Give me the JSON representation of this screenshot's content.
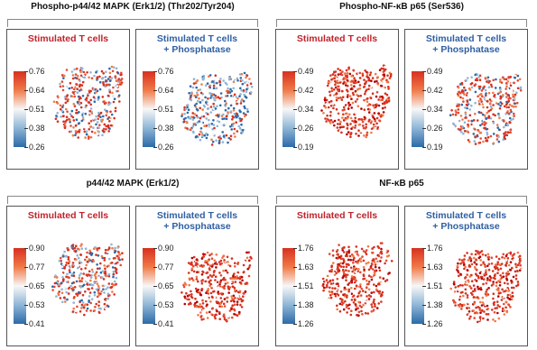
{
  "groups": [
    {
      "title": "Phospho-p44/42 MAPK (Erk1/2) (Thr202/Tyr204)",
      "panels": [
        {
          "title": "Stimulated T cells",
          "subtitle": "",
          "colorbar_ticks": [
            "0.76",
            "0.64",
            "0.51",
            "0.38",
            "0.26"
          ],
          "dominant": "mixed"
        },
        {
          "title": "Stimulated T cells",
          "subtitle": "+ Phosphatase",
          "colorbar_ticks": [
            "0.76",
            "0.64",
            "0.51",
            "0.38",
            "0.26"
          ],
          "dominant": "blue"
        }
      ]
    },
    {
      "title": "Phospho-NF-κB p65 (Ser536)",
      "panels": [
        {
          "title": "Stimulated T cells",
          "subtitle": "",
          "colorbar_ticks": [
            "0.49",
            "0.42",
            "0.34",
            "0.26",
            "0.19"
          ],
          "dominant": "red"
        },
        {
          "title": "Stimulated T cells",
          "subtitle": "+ Phosphatase",
          "colorbar_ticks": [
            "0.49",
            "0.42",
            "0.34",
            "0.26",
            "0.19"
          ],
          "dominant": "mixed"
        }
      ]
    },
    {
      "title": "p44/42 MAPK (Erk1/2)",
      "panels": [
        {
          "title": "Stimulated T cells",
          "subtitle": "",
          "colorbar_ticks": [
            "0.90",
            "0.77",
            "0.65",
            "0.53",
            "0.41"
          ],
          "dominant": "mixed"
        },
        {
          "title": "Stimulated T cells",
          "subtitle": "+ Phosphatase",
          "colorbar_ticks": [
            "0.90",
            "0.77",
            "0.65",
            "0.53",
            "0.41"
          ],
          "dominant": "red"
        }
      ]
    },
    {
      "title": "NF-κB p65",
      "panels": [
        {
          "title": "Stimulated T cells",
          "subtitle": "",
          "colorbar_ticks": [
            "1.76",
            "1.63",
            "1.51",
            "1.38",
            "1.26"
          ],
          "dominant": "red"
        },
        {
          "title": "Stimulated T cells",
          "subtitle": "+ Phosphatase",
          "colorbar_ticks": [
            "1.76",
            "1.63",
            "1.51",
            "1.38",
            "1.26"
          ],
          "dominant": "red"
        }
      ]
    }
  ],
  "colors": {
    "high": "#d7301f",
    "mid": "#f7f7f7",
    "low": "#2c6aa8",
    "title_red": "#c0232c",
    "title_blue": "#2f5fa3"
  }
}
